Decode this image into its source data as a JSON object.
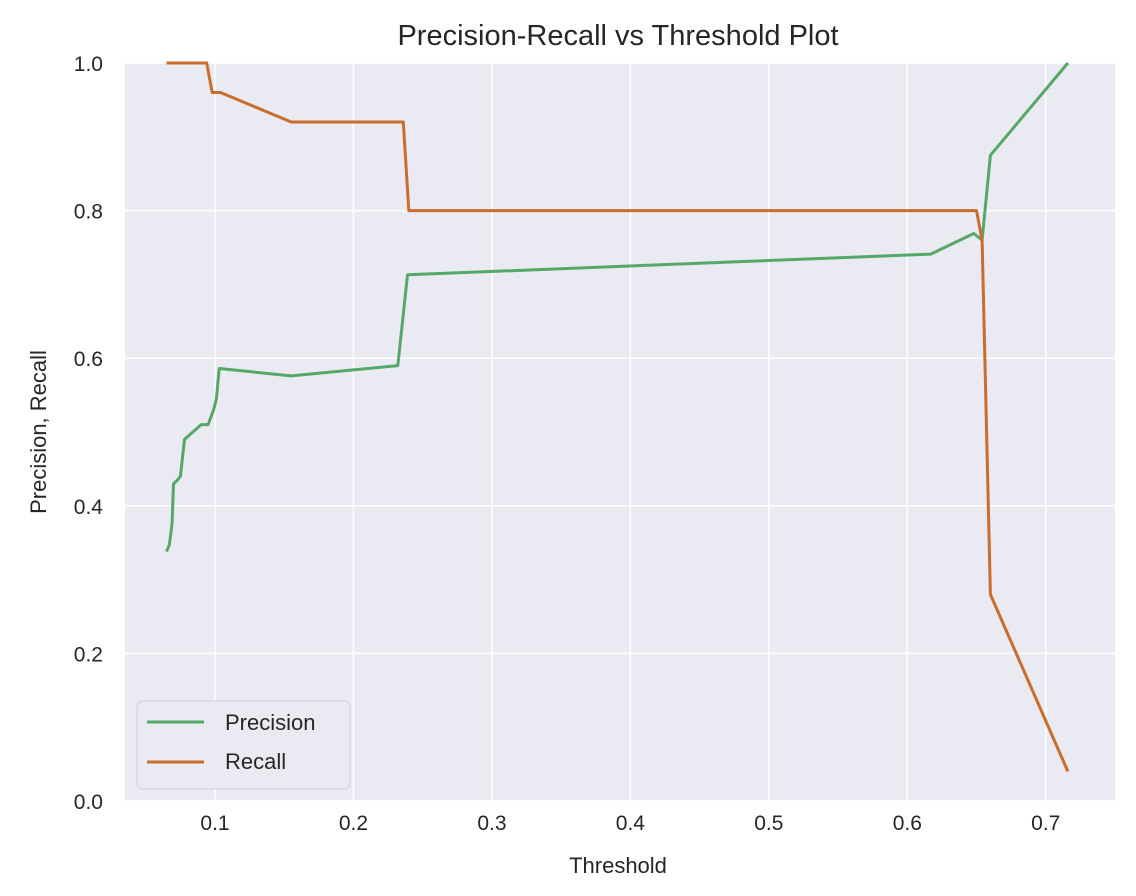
{
  "chart_data": {
    "type": "line",
    "title": "Precision-Recall vs Threshold Plot",
    "xlabel": "Threshold",
    "ylabel": "Precision, Recall",
    "xlim": [
      0.035,
      0.75
    ],
    "ylim": [
      0.0,
      1.0
    ],
    "x_ticks": [
      0.1,
      0.2,
      0.3,
      0.4,
      0.5,
      0.6,
      0.7
    ],
    "y_ticks": [
      0.0,
      0.2,
      0.4,
      0.6,
      0.8,
      1.0
    ],
    "x_tick_labels": [
      "0.1",
      "0.2",
      "0.3",
      "0.4",
      "0.5",
      "0.6",
      "0.7"
    ],
    "y_tick_labels": [
      "0.0",
      "0.2",
      "0.4",
      "0.6",
      "0.8",
      "1.0"
    ],
    "grid": true,
    "background": "#eaeaf2",
    "legend_position": "lower-left",
    "series": [
      {
        "name": "Precision",
        "color": "#55a868",
        "points": [
          [
            0.065,
            0.338
          ],
          [
            0.067,
            0.347
          ],
          [
            0.068,
            0.361
          ],
          [
            0.069,
            0.377
          ],
          [
            0.07,
            0.43
          ],
          [
            0.073,
            0.435
          ],
          [
            0.075,
            0.44
          ],
          [
            0.078,
            0.49
          ],
          [
            0.09,
            0.51
          ],
          [
            0.095,
            0.51
          ],
          [
            0.099,
            0.53
          ],
          [
            0.101,
            0.545
          ],
          [
            0.103,
            0.586
          ],
          [
            0.155,
            0.576
          ],
          [
            0.232,
            0.59
          ],
          [
            0.239,
            0.713
          ],
          [
            0.617,
            0.741
          ],
          [
            0.648,
            0.769
          ],
          [
            0.654,
            0.76
          ],
          [
            0.66,
            0.875
          ],
          [
            0.716,
            1.0
          ]
        ]
      },
      {
        "name": "Recall",
        "color": "#c96d2c",
        "points": [
          [
            0.065,
            1.0
          ],
          [
            0.094,
            1.0
          ],
          [
            0.098,
            0.96
          ],
          [
            0.104,
            0.96
          ],
          [
            0.155,
            0.92
          ],
          [
            0.236,
            0.92
          ],
          [
            0.24,
            0.8
          ],
          [
            0.65,
            0.8
          ],
          [
            0.654,
            0.76
          ],
          [
            0.66,
            0.28
          ],
          [
            0.716,
            0.04
          ]
        ]
      }
    ]
  }
}
